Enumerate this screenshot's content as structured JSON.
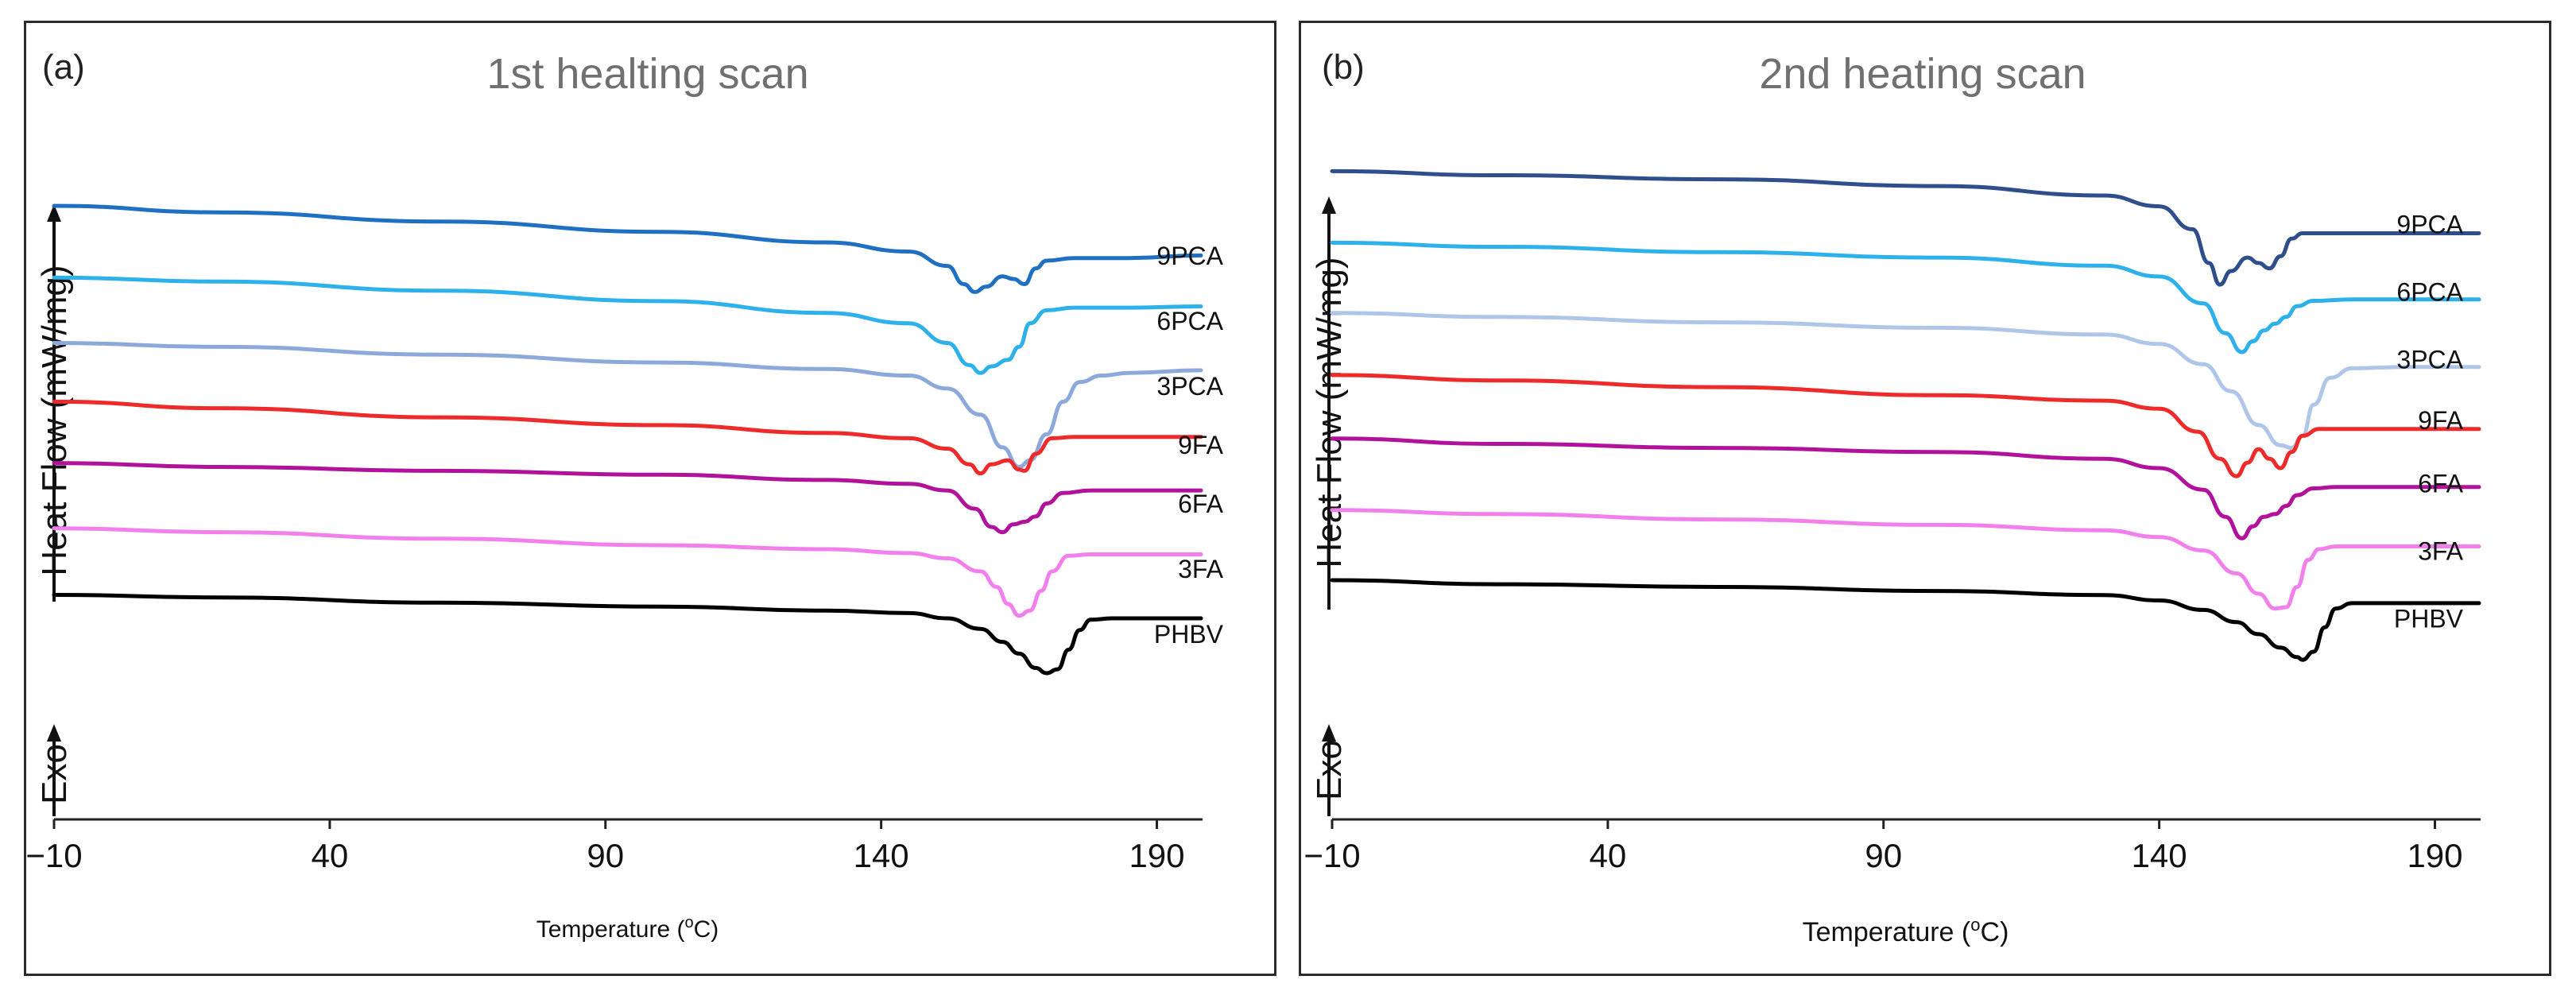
{
  "chart_data": [
    {
      "type": "line",
      "panel_label": "(a)",
      "title": "1st healting scan",
      "xlabel": "Temperature",
      "xlabel_unit_base": "o",
      "xlabel_unit_tail": "C",
      "ylabel": "Heat Flow (mW/mg)",
      "exo_label": "Exo",
      "xlim": [
        -10,
        198
      ],
      "xticks": [
        -10,
        40,
        90,
        140,
        190
      ],
      "xtick_labels": [
        "−10",
        "40",
        "90",
        "140",
        "190"
      ],
      "ylim": [
        -4.9,
        0.9
      ],
      "grid": false,
      "legend": "labels at right end of curves",
      "series": [
        {
          "name": "9PCA",
          "color": "#1f6fc2",
          "label_y": 0.05,
          "x": [
            -10,
            20,
            60,
            100,
            130,
            145,
            152,
            155,
            157,
            159,
            162,
            164,
            166,
            168,
            170,
            175,
            185,
            198
          ],
          "y": [
            0.5,
            0.45,
            0.38,
            0.3,
            0.22,
            0.15,
            0.04,
            -0.1,
            -0.16,
            -0.12,
            -0.04,
            -0.06,
            -0.1,
            0.02,
            0.08,
            0.1,
            0.1,
            0.12
          ]
        },
        {
          "name": "6PCA",
          "color": "#2eb1ea",
          "label_y": -0.45,
          "x": [
            -10,
            20,
            60,
            100,
            130,
            145,
            152,
            156,
            158,
            160,
            163,
            165,
            167,
            170,
            175,
            185,
            198
          ],
          "y": [
            -0.05,
            -0.08,
            -0.15,
            -0.23,
            -0.32,
            -0.4,
            -0.55,
            -0.72,
            -0.78,
            -0.73,
            -0.68,
            -0.58,
            -0.4,
            -0.3,
            -0.28,
            -0.28,
            -0.27
          ]
        },
        {
          "name": "3PCA",
          "color": "#8da9dc",
          "label_y": -0.95,
          "x": [
            -10,
            20,
            60,
            100,
            130,
            145,
            152,
            158,
            162,
            165,
            167,
            170,
            173,
            176,
            180,
            185,
            198
          ],
          "y": [
            -0.55,
            -0.58,
            -0.64,
            -0.7,
            -0.75,
            -0.8,
            -0.9,
            -1.1,
            -1.35,
            -1.5,
            -1.45,
            -1.25,
            -1.0,
            -0.85,
            -0.8,
            -0.78,
            -0.76
          ]
        },
        {
          "name": "9FA",
          "color": "#ee2a2a",
          "label_y": -1.4,
          "x": [
            -10,
            20,
            60,
            100,
            130,
            145,
            152,
            156,
            158,
            160,
            163,
            165,
            166,
            168,
            171,
            175,
            185,
            198
          ],
          "y": [
            -1.0,
            -1.05,
            -1.12,
            -1.18,
            -1.24,
            -1.28,
            -1.36,
            -1.48,
            -1.55,
            -1.48,
            -1.45,
            -1.52,
            -1.53,
            -1.4,
            -1.28,
            -1.27,
            -1.27,
            -1.27
          ]
        },
        {
          "name": "6FA",
          "color": "#b1129c",
          "label_y": -1.85,
          "x": [
            -10,
            20,
            60,
            100,
            130,
            145,
            152,
            157,
            160,
            162,
            164,
            166,
            168,
            170,
            173,
            178,
            185,
            198
          ],
          "y": [
            -1.47,
            -1.5,
            -1.53,
            -1.56,
            -1.6,
            -1.63,
            -1.68,
            -1.82,
            -1.96,
            -2.0,
            -1.94,
            -1.92,
            -1.88,
            -1.78,
            -1.7,
            -1.68,
            -1.68,
            -1.68
          ]
        },
        {
          "name": "3FA",
          "color": "#f280ec",
          "label_y": -2.35,
          "x": [
            -10,
            20,
            60,
            100,
            130,
            145,
            152,
            158,
            161,
            163,
            165,
            167,
            169,
            171,
            174,
            178,
            185,
            198
          ],
          "y": [
            -1.97,
            -2.0,
            -2.05,
            -2.1,
            -2.13,
            -2.16,
            -2.2,
            -2.3,
            -2.42,
            -2.55,
            -2.64,
            -2.6,
            -2.45,
            -2.3,
            -2.18,
            -2.17,
            -2.17,
            -2.17
          ]
        },
        {
          "name": "PHBV",
          "color": "#000000",
          "label_y": -2.85,
          "x": [
            -10,
            20,
            60,
            100,
            130,
            145,
            152,
            158,
            162,
            165,
            168,
            170,
            172,
            174,
            176,
            178,
            182,
            190,
            198
          ],
          "y": [
            -2.48,
            -2.5,
            -2.54,
            -2.57,
            -2.6,
            -2.62,
            -2.66,
            -2.74,
            -2.84,
            -2.93,
            -3.04,
            -3.08,
            -3.05,
            -2.9,
            -2.75,
            -2.67,
            -2.66,
            -2.66,
            -2.66
          ]
        }
      ]
    },
    {
      "type": "line",
      "panel_label": "(b)",
      "title": "2nd heating scan",
      "xlabel": "Temperature",
      "xlabel_unit_base": "o",
      "xlabel_unit_tail": "C",
      "ylabel": "Heat Flow (mW/mg)",
      "exo_label": "Exo",
      "xlim": [
        -10,
        198
      ],
      "xticks": [
        -10,
        40,
        90,
        140,
        190
      ],
      "xtick_labels": [
        "−10",
        "40",
        "90",
        "140",
        "190"
      ],
      "ylim": [
        -4.9,
        0.9
      ],
      "grid": false,
      "legend": "labels at right end of curves",
      "series": [
        {
          "name": "9PCA",
          "color": "#2e4e8c",
          "label_y": 0.12,
          "x": [
            -10,
            20,
            60,
            100,
            130,
            140,
            146,
            149,
            151,
            153,
            156,
            158,
            160,
            162,
            164,
            166,
            170,
            185,
            198
          ],
          "y": [
            0.58,
            0.55,
            0.52,
            0.47,
            0.4,
            0.32,
            0.15,
            -0.1,
            -0.26,
            -0.16,
            -0.06,
            -0.1,
            -0.14,
            -0.05,
            0.08,
            0.12,
            0.12,
            0.12,
            0.12
          ]
        },
        {
          "name": "6PCA",
          "color": "#2eb1ea",
          "label_y": -0.38,
          "x": [
            -10,
            20,
            60,
            100,
            130,
            140,
            148,
            152,
            155,
            157,
            159,
            161,
            163,
            165,
            168,
            175,
            185,
            198
          ],
          "y": [
            0.05,
            0.02,
            -0.02,
            -0.06,
            -0.12,
            -0.2,
            -0.4,
            -0.62,
            -0.76,
            -0.68,
            -0.6,
            -0.55,
            -0.5,
            -0.42,
            -0.38,
            -0.37,
            -0.37,
            -0.37
          ]
        },
        {
          "name": "3PCA",
          "color": "#b0c6e8",
          "label_y": -0.88,
          "x": [
            -10,
            20,
            60,
            100,
            130,
            140,
            148,
            153,
            158,
            162,
            164,
            166,
            168,
            171,
            175,
            185,
            198
          ],
          "y": [
            -0.47,
            -0.5,
            -0.54,
            -0.58,
            -0.63,
            -0.7,
            -0.85,
            -1.05,
            -1.3,
            -1.45,
            -1.47,
            -1.38,
            -1.15,
            -0.95,
            -0.88,
            -0.87,
            -0.87
          ]
        },
        {
          "name": "9FA",
          "color": "#ee2a2a",
          "label_y": -1.33,
          "x": [
            -10,
            20,
            60,
            100,
            130,
            140,
            147,
            151,
            154,
            156,
            158,
            160,
            162,
            164,
            166,
            169,
            175,
            185,
            198
          ],
          "y": [
            -0.93,
            -0.97,
            -1.02,
            -1.08,
            -1.12,
            -1.18,
            -1.35,
            -1.55,
            -1.68,
            -1.58,
            -1.48,
            -1.55,
            -1.62,
            -1.5,
            -1.38,
            -1.33,
            -1.33,
            -1.33,
            -1.33
          ]
        },
        {
          "name": "6FA",
          "color": "#b1129c",
          "label_y": -1.8,
          "x": [
            -10,
            20,
            60,
            100,
            130,
            140,
            148,
            152,
            155,
            157,
            159,
            161,
            163,
            165,
            168,
            172,
            180,
            198
          ],
          "y": [
            -1.4,
            -1.44,
            -1.47,
            -1.5,
            -1.55,
            -1.62,
            -1.78,
            -1.98,
            -2.14,
            -2.05,
            -1.98,
            -1.96,
            -1.9,
            -1.82,
            -1.77,
            -1.76,
            -1.76,
            -1.76
          ]
        },
        {
          "name": "3FA",
          "color": "#f280ec",
          "label_y": -2.3,
          "x": [
            -10,
            20,
            60,
            100,
            130,
            140,
            148,
            154,
            158,
            161,
            163,
            165,
            167,
            169,
            172,
            178,
            190,
            198
          ],
          "y": [
            -1.93,
            -1.96,
            -2.0,
            -2.04,
            -2.08,
            -2.13,
            -2.23,
            -2.4,
            -2.55,
            -2.66,
            -2.65,
            -2.5,
            -2.3,
            -2.22,
            -2.2,
            -2.2,
            -2.2,
            -2.2
          ]
        },
        {
          "name": "PHBV",
          "color": "#000000",
          "label_y": -2.8,
          "x": [
            -10,
            20,
            60,
            100,
            130,
            140,
            148,
            154,
            158,
            162,
            165,
            166,
            168,
            170,
            172,
            175,
            180,
            190,
            198
          ],
          "y": [
            -2.45,
            -2.48,
            -2.5,
            -2.53,
            -2.56,
            -2.6,
            -2.67,
            -2.76,
            -2.85,
            -2.95,
            -3.02,
            -3.04,
            -2.98,
            -2.8,
            -2.66,
            -2.62,
            -2.62,
            -2.62,
            -2.62
          ]
        }
      ]
    }
  ]
}
